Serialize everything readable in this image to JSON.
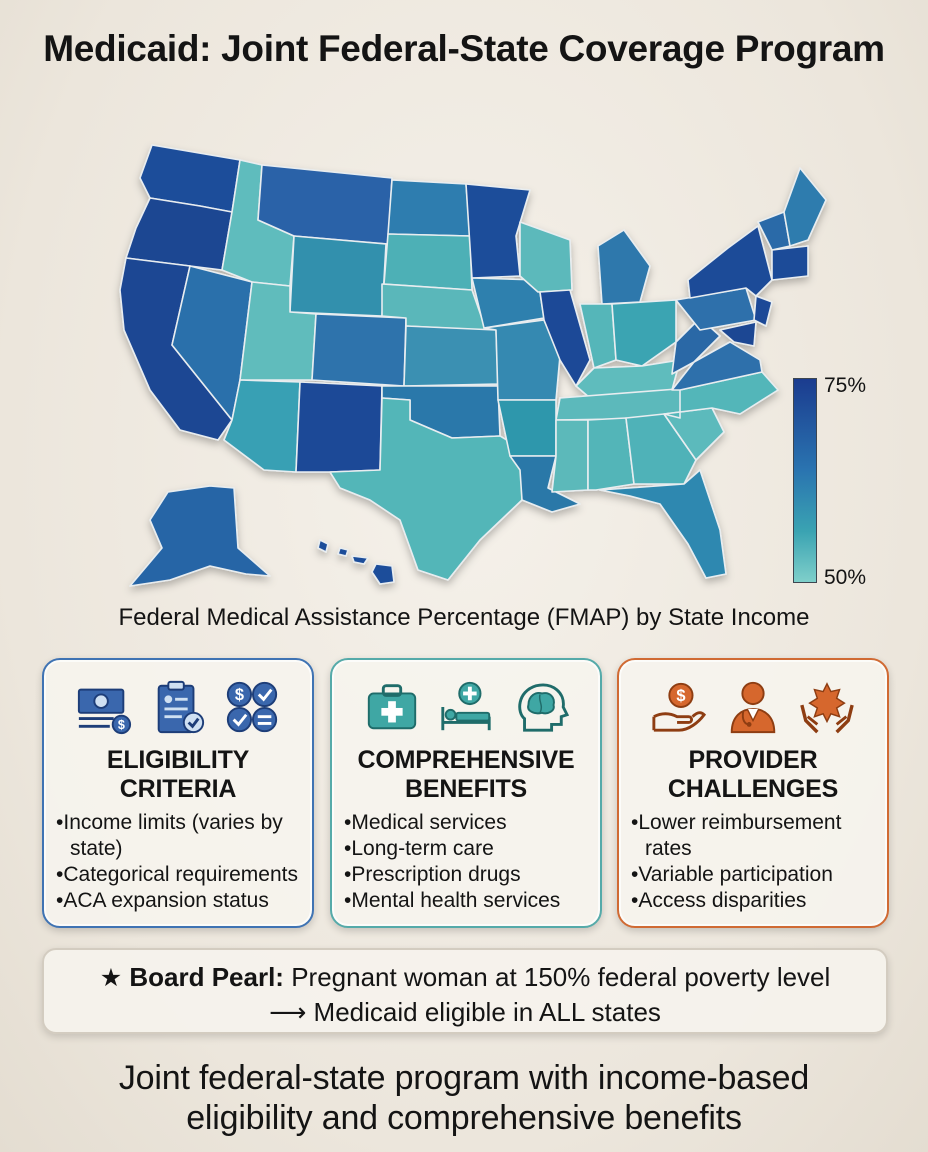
{
  "title": "Medicaid: Joint Federal-State Coverage Program",
  "map": {
    "caption": "Federal Medical Assistance Percentage (FMAP) by State Income",
    "legend": {
      "max_label": "75%",
      "min_label": "50%",
      "color_high": "#1b3c8f",
      "color_low": "#7fcfca"
    }
  },
  "cards": {
    "eligibility": {
      "title_line1": "ELIGIBILITY",
      "title_line2": "CRITERIA",
      "items": [
        "Income limits (varies by state)",
        "Categorical requirements",
        "ACA expansion status"
      ],
      "accent": "#3f73b3",
      "icons": [
        "money-icon",
        "clipboard-icon",
        "calculator-icon"
      ]
    },
    "benefits": {
      "title_line1": "COMPREHENSIVE",
      "title_line2": "BENEFITS",
      "items": [
        "Medical services",
        "Long-term care",
        "Prescription drugs",
        "Mental health services"
      ],
      "accent": "#55aaa9",
      "icons": [
        "medical-kit-icon",
        "hospital-bed-icon",
        "brain-head-icon"
      ]
    },
    "challenges": {
      "title_line1": "PROVIDER",
      "title_line2": "CHALLENGES",
      "items": [
        "Lower reimbursement rates",
        "Variable participation",
        "Access disparities"
      ],
      "accent": "#d06a33",
      "icons": [
        "hand-coin-icon",
        "doctor-icon",
        "hands-care-icon"
      ]
    }
  },
  "pearl": {
    "star": "★",
    "label": "Board Pearl:",
    "text": " Pregnant woman at 150% federal poverty level",
    "line2": "⟶ Medicaid eligible in ALL states"
  },
  "footer": {
    "line1": "Joint federal-state program with income-based",
    "line2": "eligibility and comprehensive benefits"
  }
}
